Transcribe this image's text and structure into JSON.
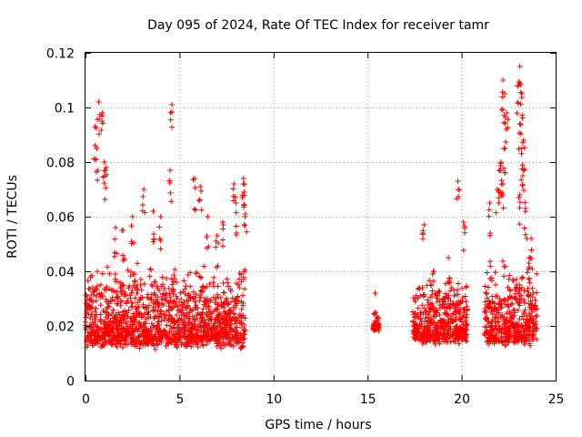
{
  "chart_data": {
    "type": "scatter",
    "title": "Day 095 of 2024, Rate Of TEC Index for receiver tamr",
    "xlabel": "GPS time / hours",
    "ylabel": "ROTI / TECUs",
    "xlim": [
      0,
      25
    ],
    "ylim": [
      0,
      0.12
    ],
    "x_ticks": [
      "0",
      "5",
      "10",
      "15",
      "20",
      "25"
    ],
    "y_ticks": [
      "0",
      "0.02",
      "0.04",
      "0.06",
      "0.08",
      "0.1",
      "0.12"
    ],
    "grid": true,
    "marker": "+",
    "color": "#ff0000",
    "legend": "none",
    "segments": [
      {
        "x_range": [
          0.0,
          8.5
        ],
        "y_base": [
          0.005,
          0.045
        ],
        "peaks": [
          [
            0.7,
            0.102
          ],
          [
            0.9,
            0.098
          ],
          [
            0.5,
            0.093
          ],
          [
            0.6,
            0.085
          ],
          [
            1.0,
            0.08
          ],
          [
            1.1,
            0.078
          ],
          [
            4.6,
            0.101
          ],
          [
            4.5,
            0.077
          ],
          [
            5.8,
            0.074
          ],
          [
            8.4,
            0.074
          ],
          [
            8.4,
            0.072
          ],
          [
            7.9,
            0.072
          ],
          [
            3.1,
            0.07
          ],
          [
            6.1,
            0.071
          ],
          [
            8.0,
            0.065
          ],
          [
            2.5,
            0.06
          ],
          [
            2.0,
            0.055
          ],
          [
            4.0,
            0.06
          ],
          [
            6.5,
            0.06
          ],
          [
            7.3,
            0.058
          ],
          [
            8.5,
            0.061
          ],
          [
            7.0,
            0.053
          ],
          [
            1.6,
            0.056
          ],
          [
            3.6,
            0.062
          ]
        ]
      },
      {
        "x_range": [
          15.3,
          15.6
        ],
        "y_base": [
          0.017,
          0.024
        ],
        "peaks": [
          [
            15.4,
            0.032
          ]
        ]
      },
      {
        "x_range": [
          17.4,
          20.3
        ],
        "y_base": [
          0.008,
          0.04
        ],
        "peaks": [
          [
            18.0,
            0.057
          ],
          [
            19.3,
            0.045
          ],
          [
            19.8,
            0.073
          ],
          [
            20.1,
            0.058
          ],
          [
            18.5,
            0.04
          ]
        ]
      },
      {
        "x_range": [
          21.2,
          24.0
        ],
        "y_base": [
          0.006,
          0.045
        ],
        "peaks": [
          [
            23.1,
            0.115
          ],
          [
            22.2,
            0.11
          ],
          [
            22.3,
            0.105
          ],
          [
            23.0,
            0.108
          ],
          [
            23.2,
            0.105
          ],
          [
            22.4,
            0.098
          ],
          [
            23.1,
            0.094
          ],
          [
            23.3,
            0.088
          ],
          [
            23.2,
            0.085
          ],
          [
            22.1,
            0.08
          ],
          [
            22.0,
            0.077
          ],
          [
            22.3,
            0.085
          ],
          [
            23.3,
            0.077
          ],
          [
            21.9,
            0.07
          ],
          [
            22.2,
            0.072
          ],
          [
            23.1,
            0.068
          ],
          [
            23.4,
            0.063
          ],
          [
            21.5,
            0.065
          ],
          [
            23.7,
            0.052
          ],
          [
            23.6,
            0.045
          ]
        ]
      }
    ]
  }
}
